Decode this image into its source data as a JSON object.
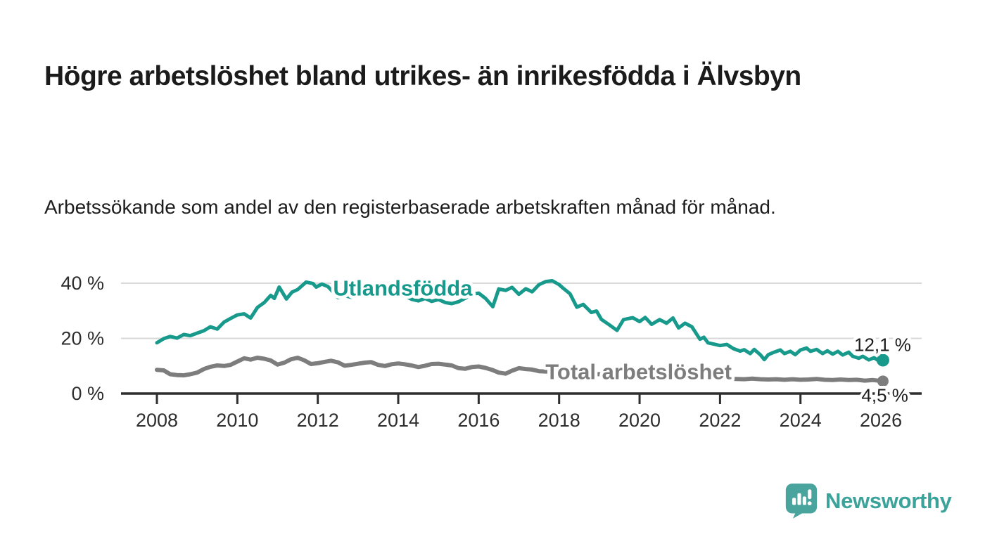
{
  "header": {
    "title": "Högre arbetslöshet bland utrikes- än inrikesfödda i Älvsbyn",
    "subtitle": "Arbetssökande som andel av den registerbaserade arbetskraften månad för månad."
  },
  "footer": {
    "brand": "Newsworthy",
    "logo_icon": "bar-chart-speech-bubble-icon",
    "brand_color": "#3ba39a",
    "logo_fill": "#4aa49e"
  },
  "colors": {
    "series_foreign_born": "#179a8c",
    "series_total": "#7d7d7d",
    "gridline": "#d8d8d8",
    "axis": "#2e2e2e",
    "tick_label": "#2e2e2e",
    "end_label": "#1d1d1d",
    "background": "#ffffff"
  },
  "chart_data": {
    "type": "line",
    "title": "Högre arbetslöshet bland utrikes- än inrikesfödda i Älvsbyn",
    "subtitle": "Arbetssökande som andel av den registerbaserade arbetskraften månad för månad.",
    "unit": "%",
    "grid": "horizontal-only",
    "legend_position": "inline-on-line",
    "x_axis": {
      "range": [
        2007.1,
        2027.0
      ],
      "ticks": [
        {
          "value": 2008,
          "label": "2008"
        },
        {
          "value": 2010,
          "label": "2010"
        },
        {
          "value": 2012,
          "label": "2012"
        },
        {
          "value": 2014,
          "label": "2014"
        },
        {
          "value": 2016,
          "label": "2016"
        },
        {
          "value": 2018,
          "label": "2018"
        },
        {
          "value": 2020,
          "label": "2020"
        },
        {
          "value": 2022,
          "label": "2022"
        },
        {
          "value": 2024,
          "label": "2024"
        },
        {
          "value": 2026,
          "label": "2026"
        }
      ]
    },
    "y_axis": {
      "range": [
        0,
        43
      ],
      "ticks": [
        {
          "value": 0,
          "label": "0 %"
        },
        {
          "value": 20,
          "label": "20 %"
        },
        {
          "value": 40,
          "label": "40 %"
        }
      ]
    },
    "series": [
      {
        "name": "Utlandsfödda",
        "color": "#179a8c",
        "line_width": 5,
        "end_dot_radius": 9,
        "end_value_label": "12,1 %",
        "end_label_anchor": {
          "year": 2026.75,
          "value": 15.4
        },
        "inline_label": {
          "text": "Utlandsfödda",
          "year": 2012.38,
          "value": 35.6
        },
        "points": [
          [
            2008.0,
            18.4
          ],
          [
            2008.17,
            19.9
          ],
          [
            2008.33,
            20.7
          ],
          [
            2008.5,
            20.1
          ],
          [
            2008.67,
            21.4
          ],
          [
            2008.83,
            21.0
          ],
          [
            2009.0,
            21.9
          ],
          [
            2009.17,
            22.8
          ],
          [
            2009.33,
            24.2
          ],
          [
            2009.5,
            23.4
          ],
          [
            2009.67,
            25.9
          ],
          [
            2009.83,
            27.2
          ],
          [
            2010.0,
            28.5
          ],
          [
            2010.17,
            28.9
          ],
          [
            2010.33,
            27.4
          ],
          [
            2010.5,
            31.2
          ],
          [
            2010.67,
            33.0
          ],
          [
            2010.83,
            35.6
          ],
          [
            2010.92,
            34.5
          ],
          [
            2011.04,
            38.6
          ],
          [
            2011.22,
            34.3
          ],
          [
            2011.36,
            36.8
          ],
          [
            2011.5,
            37.7
          ],
          [
            2011.71,
            40.4
          ],
          [
            2011.88,
            39.9
          ],
          [
            2011.96,
            38.6
          ],
          [
            2012.1,
            39.7
          ],
          [
            2012.25,
            38.8
          ],
          [
            2012.4,
            36.5
          ],
          [
            2012.5,
            34.8
          ],
          [
            2012.67,
            35.5
          ],
          [
            2012.83,
            34.9
          ],
          [
            2013.0,
            35.8
          ],
          [
            2013.17,
            36.3
          ],
          [
            2013.33,
            35.2
          ],
          [
            2013.5,
            36.0
          ],
          [
            2013.67,
            35.3
          ],
          [
            2013.83,
            36.9
          ],
          [
            2014.0,
            36.2
          ],
          [
            2014.17,
            35.4
          ],
          [
            2014.33,
            34.2
          ],
          [
            2014.5,
            33.6
          ],
          [
            2014.67,
            34.5
          ],
          [
            2014.83,
            33.4
          ],
          [
            2015.0,
            34.1
          ],
          [
            2015.17,
            33.0
          ],
          [
            2015.33,
            32.6
          ],
          [
            2015.5,
            33.3
          ],
          [
            2015.67,
            34.6
          ],
          [
            2015.83,
            36.0
          ],
          [
            2016.0,
            36.4
          ],
          [
            2016.17,
            34.5
          ],
          [
            2016.35,
            31.5
          ],
          [
            2016.5,
            37.9
          ],
          [
            2016.67,
            37.4
          ],
          [
            2016.83,
            38.5
          ],
          [
            2017.0,
            36.0
          ],
          [
            2017.17,
            38.0
          ],
          [
            2017.33,
            36.9
          ],
          [
            2017.5,
            39.5
          ],
          [
            2017.67,
            40.6
          ],
          [
            2017.83,
            40.9
          ],
          [
            2018.0,
            39.5
          ],
          [
            2018.1,
            38.2
          ],
          [
            2018.27,
            36.2
          ],
          [
            2018.44,
            31.3
          ],
          [
            2018.6,
            32.3
          ],
          [
            2018.8,
            29.4
          ],
          [
            2018.93,
            29.9
          ],
          [
            2019.05,
            26.9
          ],
          [
            2019.23,
            25.1
          ],
          [
            2019.44,
            22.9
          ],
          [
            2019.6,
            26.8
          ],
          [
            2019.83,
            27.5
          ],
          [
            2020.0,
            26.1
          ],
          [
            2020.14,
            27.6
          ],
          [
            2020.3,
            25.1
          ],
          [
            2020.5,
            26.8
          ],
          [
            2020.67,
            25.5
          ],
          [
            2020.83,
            27.4
          ],
          [
            2020.97,
            23.8
          ],
          [
            2021.13,
            25.5
          ],
          [
            2021.3,
            24.2
          ],
          [
            2021.5,
            19.7
          ],
          [
            2021.6,
            20.4
          ],
          [
            2021.7,
            18.4
          ],
          [
            2021.85,
            17.9
          ],
          [
            2022.0,
            17.4
          ],
          [
            2022.17,
            17.8
          ],
          [
            2022.33,
            16.3
          ],
          [
            2022.5,
            15.4
          ],
          [
            2022.6,
            15.9
          ],
          [
            2022.75,
            14.5
          ],
          [
            2022.85,
            16.0
          ],
          [
            2023.0,
            14.1
          ],
          [
            2023.1,
            12.3
          ],
          [
            2023.2,
            14.1
          ],
          [
            2023.33,
            14.9
          ],
          [
            2023.5,
            15.8
          ],
          [
            2023.6,
            14.5
          ],
          [
            2023.75,
            15.3
          ],
          [
            2023.87,
            14.1
          ],
          [
            2024.0,
            15.8
          ],
          [
            2024.15,
            16.5
          ],
          [
            2024.25,
            15.3
          ],
          [
            2024.4,
            16.0
          ],
          [
            2024.55,
            14.5
          ],
          [
            2024.67,
            15.5
          ],
          [
            2024.8,
            14.3
          ],
          [
            2024.93,
            15.3
          ],
          [
            2025.05,
            14.0
          ],
          [
            2025.2,
            15.0
          ],
          [
            2025.3,
            13.5
          ],
          [
            2025.45,
            12.8
          ],
          [
            2025.55,
            13.5
          ],
          [
            2025.7,
            12.2
          ],
          [
            2025.83,
            13.0
          ],
          [
            2025.95,
            11.8
          ],
          [
            2026.05,
            12.1
          ]
        ]
      },
      {
        "name": "Total arbetslöshet",
        "color": "#7d7d7d",
        "line_width": 6,
        "end_dot_radius": 8,
        "end_value_label": "4,5 %",
        "end_label_anchor": {
          "year": 2026.68,
          "value": -2.9
        },
        "inline_label": {
          "text": "Total arbetslöshet",
          "year": 2017.66,
          "value": 5.2
        },
        "points": [
          [
            2008.0,
            8.6
          ],
          [
            2008.17,
            8.4
          ],
          [
            2008.33,
            7.0
          ],
          [
            2008.5,
            6.7
          ],
          [
            2008.67,
            6.6
          ],
          [
            2008.83,
            7.0
          ],
          [
            2009.0,
            7.6
          ],
          [
            2009.17,
            8.9
          ],
          [
            2009.33,
            9.7
          ],
          [
            2009.5,
            10.2
          ],
          [
            2009.67,
            10.0
          ],
          [
            2009.83,
            10.4
          ],
          [
            2010.0,
            11.6
          ],
          [
            2010.17,
            12.8
          ],
          [
            2010.33,
            12.3
          ],
          [
            2010.5,
            13.0
          ],
          [
            2010.67,
            12.6
          ],
          [
            2010.83,
            12.0
          ],
          [
            2011.0,
            10.5
          ],
          [
            2011.17,
            11.2
          ],
          [
            2011.33,
            12.4
          ],
          [
            2011.5,
            13.0
          ],
          [
            2011.67,
            12.0
          ],
          [
            2011.83,
            10.7
          ],
          [
            2012.0,
            11.0
          ],
          [
            2012.17,
            11.5
          ],
          [
            2012.33,
            11.9
          ],
          [
            2012.5,
            11.3
          ],
          [
            2012.67,
            10.1
          ],
          [
            2012.83,
            10.4
          ],
          [
            2013.0,
            10.8
          ],
          [
            2013.17,
            11.2
          ],
          [
            2013.33,
            11.4
          ],
          [
            2013.5,
            10.4
          ],
          [
            2013.67,
            10.0
          ],
          [
            2013.83,
            10.6
          ],
          [
            2014.0,
            10.9
          ],
          [
            2014.17,
            10.6
          ],
          [
            2014.33,
            10.2
          ],
          [
            2014.5,
            9.6
          ],
          [
            2014.67,
            10.1
          ],
          [
            2014.83,
            10.7
          ],
          [
            2015.0,
            10.8
          ],
          [
            2015.17,
            10.5
          ],
          [
            2015.33,
            10.2
          ],
          [
            2015.5,
            9.2
          ],
          [
            2015.67,
            9.0
          ],
          [
            2015.83,
            9.6
          ],
          [
            2016.0,
            9.8
          ],
          [
            2016.17,
            9.3
          ],
          [
            2016.33,
            8.6
          ],
          [
            2016.5,
            7.6
          ],
          [
            2016.67,
            7.2
          ],
          [
            2016.83,
            8.3
          ],
          [
            2017.0,
            9.2
          ],
          [
            2017.17,
            8.9
          ],
          [
            2017.33,
            8.7
          ],
          [
            2017.5,
            8.1
          ],
          [
            2017.67,
            8.0
          ],
          [
            2018.0,
            7.8
          ],
          [
            2018.5,
            7.4
          ],
          [
            2019.0,
            7.0
          ],
          [
            2019.5,
            6.8
          ],
          [
            2020.0,
            6.9
          ],
          [
            2020.5,
            6.6
          ],
          [
            2021.0,
            6.2
          ],
          [
            2021.5,
            5.8
          ],
          [
            2022.0,
            5.5
          ],
          [
            2022.4,
            5.3
          ],
          [
            2022.6,
            5.2
          ],
          [
            2022.8,
            5.4
          ],
          [
            2023.0,
            5.2
          ],
          [
            2023.2,
            5.1
          ],
          [
            2023.4,
            5.2
          ],
          [
            2023.6,
            5.0
          ],
          [
            2023.8,
            5.2
          ],
          [
            2024.0,
            5.0
          ],
          [
            2024.2,
            5.1
          ],
          [
            2024.4,
            5.3
          ],
          [
            2024.6,
            5.0
          ],
          [
            2024.8,
            4.9
          ],
          [
            2025.0,
            5.1
          ],
          [
            2025.2,
            4.9
          ],
          [
            2025.4,
            5.0
          ],
          [
            2025.6,
            4.7
          ],
          [
            2025.8,
            4.9
          ],
          [
            2026.05,
            4.5
          ]
        ]
      }
    ]
  }
}
